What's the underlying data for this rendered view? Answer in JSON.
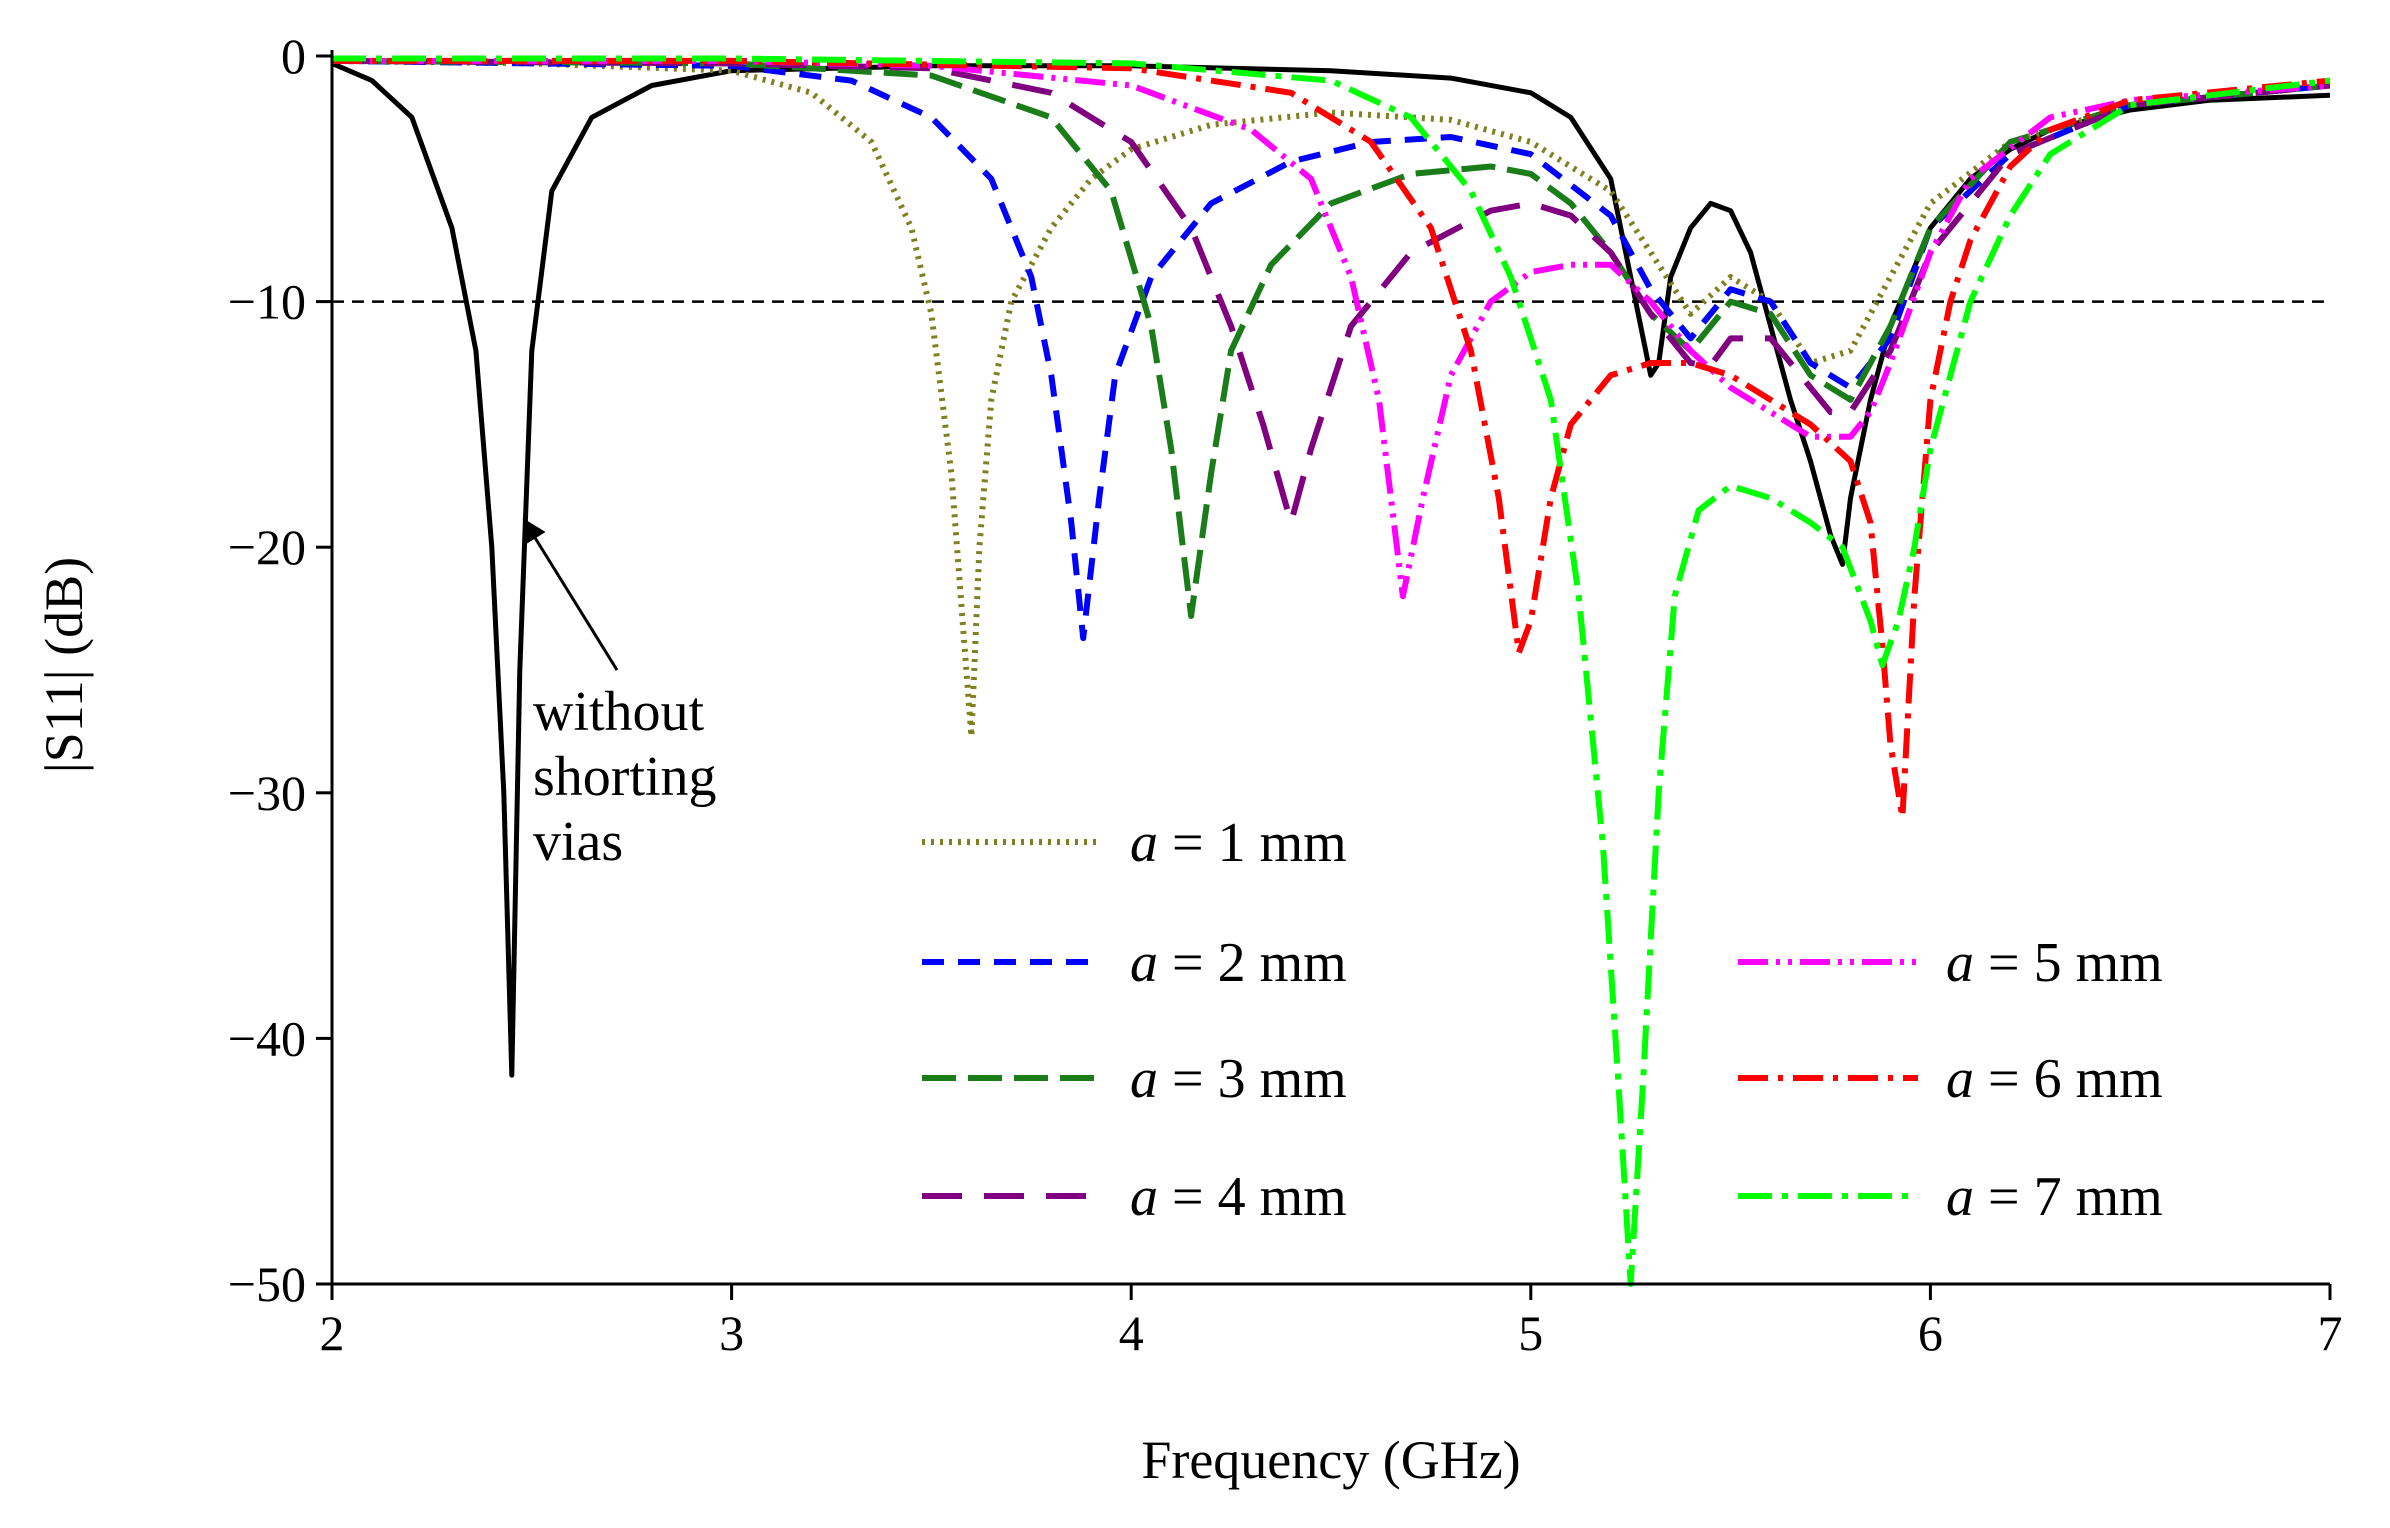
{
  "chart_data": {
    "type": "line",
    "title": "",
    "xlabel": "Frequency (GHz)",
    "ylabel": "|S11| (dB)",
    "xlim": [
      2,
      7
    ],
    "ylim": [
      -50,
      0
    ],
    "xticks": [
      "2",
      "3",
      "4",
      "5",
      "6",
      "7"
    ],
    "yticks": [
      "0",
      "−10",
      "−20",
      "−30",
      "−40",
      "−50"
    ],
    "reference_line": {
      "y": -10,
      "style": "dashed",
      "color": "#000000"
    },
    "annotation": {
      "lines": [
        "without",
        "shorting",
        "vias"
      ],
      "points_to": [
        2.45,
        -19
      ]
    },
    "series": [
      {
        "name": "without shorting vias",
        "color": "#000000",
        "dash": "",
        "legend": false,
        "x": [
          2.0,
          2.1,
          2.2,
          2.3,
          2.36,
          2.4,
          2.43,
          2.45,
          2.47,
          2.5,
          2.55,
          2.65,
          2.8,
          3.0,
          3.5,
          4.0,
          4.5,
          4.8,
          5.0,
          5.1,
          5.2,
          5.25,
          5.3,
          5.32,
          5.35,
          5.4,
          5.45,
          5.5,
          5.55,
          5.6,
          5.65,
          5.7,
          5.75,
          5.78,
          5.8,
          5.85,
          5.9,
          6.0,
          6.1,
          6.2,
          6.3,
          6.5,
          6.7,
          7.0
        ],
        "y": [
          -0.3,
          -1.0,
          -2.5,
          -7.0,
          -12.0,
          -20.0,
          -30.0,
          -41.5,
          -25.0,
          -12.0,
          -5.5,
          -2.5,
          -1.2,
          -0.6,
          -0.4,
          -0.4,
          -0.6,
          -0.9,
          -1.5,
          -2.5,
          -5.0,
          -9.0,
          -13.0,
          -12.5,
          -9.0,
          -7.0,
          -6.0,
          -6.3,
          -8.0,
          -11.0,
          -14.0,
          -16.5,
          -19.5,
          -20.7,
          -18.0,
          -14.0,
          -11.0,
          -7.0,
          -5.0,
          -3.8,
          -3.0,
          -2.2,
          -1.8,
          -1.6
        ]
      },
      {
        "name": "a = 1 mm",
        "label_prefix": "a",
        "label_suffix": " = 1 mm",
        "color": "#808020",
        "dash": "3,6",
        "legend": true,
        "x": [
          2.0,
          2.5,
          3.0,
          3.2,
          3.35,
          3.45,
          3.5,
          3.55,
          3.6,
          3.62,
          3.65,
          3.7,
          3.8,
          3.9,
          4.0,
          4.2,
          4.5,
          4.8,
          5.0,
          5.2,
          5.3,
          5.4,
          5.5,
          5.6,
          5.7,
          5.8,
          5.9,
          6.0,
          6.2,
          6.5,
          7.0
        ],
        "y": [
          -0.2,
          -0.3,
          -0.6,
          -1.5,
          -3.5,
          -7.0,
          -10.5,
          -17.0,
          -27.7,
          -20.0,
          -14.0,
          -10.0,
          -7.0,
          -5.0,
          -3.8,
          -2.8,
          -2.3,
          -2.6,
          -3.5,
          -5.5,
          -8.0,
          -10.5,
          -9.0,
          -10.0,
          -12.5,
          -12.0,
          -9.0,
          -6.0,
          -3.5,
          -2.0,
          -1.2
        ]
      },
      {
        "name": "a = 2 mm",
        "label_prefix": "a",
        "label_suffix": " = 2 mm",
        "color": "#0000ff",
        "dash": "22,14",
        "legend": true,
        "x": [
          2.0,
          3.0,
          3.3,
          3.5,
          3.65,
          3.75,
          3.8,
          3.85,
          3.88,
          3.92,
          3.96,
          4.05,
          4.2,
          4.4,
          4.6,
          4.8,
          5.0,
          5.2,
          5.3,
          5.4,
          5.5,
          5.6,
          5.7,
          5.8,
          5.9,
          6.0,
          6.2,
          6.5,
          7.0
        ],
        "y": [
          -0.2,
          -0.4,
          -1.0,
          -2.5,
          -5.0,
          -9.0,
          -13.0,
          -19.0,
          -23.7,
          -18.0,
          -13.0,
          -9.0,
          -6.0,
          -4.3,
          -3.5,
          -3.3,
          -4.0,
          -6.5,
          -9.5,
          -11.5,
          -9.5,
          -10.0,
          -12.5,
          -13.5,
          -11.5,
          -7.0,
          -4.0,
          -2.0,
          -1.2
        ]
      },
      {
        "name": "a = 3 mm",
        "label_prefix": "a",
        "label_suffix": " = 3 mm",
        "color": "#1a7d1a",
        "dash": "34,12",
        "legend": true,
        "x": [
          2.0,
          3.0,
          3.5,
          3.8,
          3.95,
          4.05,
          4.1,
          4.15,
          4.2,
          4.25,
          4.35,
          4.5,
          4.7,
          4.9,
          5.0,
          5.1,
          5.2,
          5.3,
          5.4,
          5.5,
          5.6,
          5.7,
          5.8,
          5.9,
          6.0,
          6.2,
          6.5,
          7.0
        ],
        "y": [
          -0.2,
          -0.3,
          -0.8,
          -2.5,
          -5.5,
          -11.0,
          -16.0,
          -22.8,
          -17.0,
          -12.0,
          -8.5,
          -6.0,
          -4.8,
          -4.5,
          -4.8,
          -6.0,
          -8.0,
          -10.5,
          -12.0,
          -10.0,
          -10.5,
          -13.0,
          -14.0,
          -11.0,
          -7.0,
          -3.5,
          -2.0,
          -1.2
        ]
      },
      {
        "name": "a = 4 mm",
        "label_prefix": "a",
        "label_suffix": " = 4 mm",
        "color": "#800080",
        "dash": "40,22",
        "legend": true,
        "x": [
          2.0,
          3.0,
          3.5,
          3.8,
          4.0,
          4.15,
          4.25,
          4.33,
          4.4,
          4.45,
          4.55,
          4.7,
          4.9,
          5.0,
          5.1,
          5.2,
          5.3,
          5.4,
          5.45,
          5.5,
          5.6,
          5.7,
          5.75,
          5.8,
          5.9,
          6.0,
          6.2,
          6.5,
          7.0
        ],
        "y": [
          -0.2,
          -0.3,
          -0.5,
          -1.5,
          -3.5,
          -7.0,
          -11.0,
          -15.0,
          -19.0,
          -16.0,
          -11.0,
          -8.0,
          -6.3,
          -6.0,
          -6.5,
          -8.0,
          -10.5,
          -12.5,
          -12.6,
          -11.5,
          -11.5,
          -13.5,
          -14.5,
          -14.5,
          -12.0,
          -8.0,
          -4.0,
          -2.0,
          -1.2
        ]
      },
      {
        "name": "a = 5 mm",
        "label_prefix": "a",
        "label_suffix": " = 5 mm",
        "color": "#ff00ff",
        "dash": "30,8,4,8,4,8",
        "legend": true,
        "x": [
          2.0,
          3.0,
          3.5,
          4.0,
          4.3,
          4.45,
          4.55,
          4.62,
          4.68,
          4.73,
          4.8,
          4.9,
          5.0,
          5.1,
          5.2,
          5.3,
          5.4,
          5.5,
          5.6,
          5.7,
          5.8,
          5.85,
          5.9,
          6.0,
          6.1,
          6.3,
          6.5,
          7.0
        ],
        "y": [
          -0.2,
          -0.2,
          -0.4,
          -1.2,
          -3.0,
          -5.0,
          -9.0,
          -14.0,
          -22.0,
          -18.0,
          -13.0,
          -10.0,
          -8.8,
          -8.5,
          -8.5,
          -10.0,
          -12.0,
          -13.5,
          -14.5,
          -15.5,
          -15.5,
          -14.5,
          -12.5,
          -8.0,
          -5.0,
          -2.5,
          -1.8,
          -1.2
        ]
      },
      {
        "name": "a = 6 mm",
        "label_prefix": "a",
        "label_suffix": " = 6 mm",
        "color": "#ff0000",
        "dash": "30,10,5,10",
        "legend": true,
        "x": [
          2.0,
          3.0,
          4.0,
          4.4,
          4.6,
          4.75,
          4.85,
          4.92,
          4.97,
          5.0,
          5.05,
          5.1,
          5.2,
          5.3,
          5.4,
          5.5,
          5.6,
          5.7,
          5.8,
          5.85,
          5.88,
          5.9,
          5.93,
          5.96,
          6.0,
          6.05,
          6.1,
          6.2,
          6.3,
          6.5,
          7.0
        ],
        "y": [
          -0.2,
          -0.2,
          -0.5,
          -1.5,
          -3.5,
          -7.0,
          -12.0,
          -18.0,
          -24.3,
          -23.0,
          -18.0,
          -15.0,
          -13.0,
          -12.5,
          -12.5,
          -13.0,
          -14.0,
          -15.0,
          -16.5,
          -19.0,
          -24.0,
          -28.0,
          -31.0,
          -22.0,
          -14.0,
          -10.0,
          -7.5,
          -4.5,
          -3.0,
          -1.8,
          -1.0
        ]
      },
      {
        "name": "a = 7 mm",
        "label_prefix": "a",
        "label_suffix": " = 7 mm",
        "color": "#00ff00",
        "dash": "34,10,6,10",
        "legend": true,
        "x": [
          2.0,
          3.0,
          4.0,
          4.5,
          4.7,
          4.85,
          4.95,
          5.05,
          5.12,
          5.18,
          5.22,
          5.25,
          5.28,
          5.32,
          5.36,
          5.42,
          5.5,
          5.6,
          5.7,
          5.78,
          5.85,
          5.88,
          5.92,
          5.96,
          6.0,
          6.1,
          6.2,
          6.3,
          6.5,
          7.0
        ],
        "y": [
          -0.1,
          -0.1,
          -0.3,
          -1.0,
          -2.5,
          -5.5,
          -9.0,
          -14.0,
          -22.0,
          -32.0,
          -42.0,
          -50.0,
          -42.0,
          -30.0,
          -22.0,
          -18.5,
          -17.5,
          -18.0,
          -19.0,
          -20.0,
          -23.0,
          -24.8,
          -23.0,
          -20.0,
          -16.0,
          -10.0,
          -6.5,
          -4.0,
          -2.0,
          -1.0
        ]
      }
    ]
  }
}
